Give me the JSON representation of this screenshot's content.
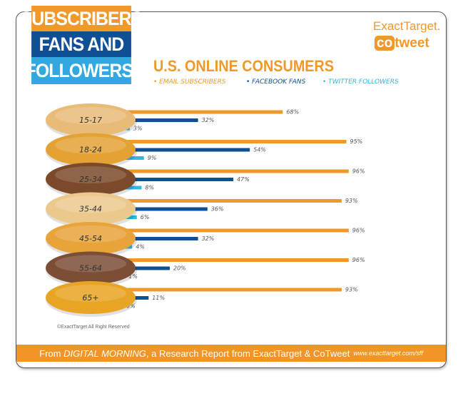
{
  "header": {
    "line1": "SUBSCRIBERS",
    "line2": "FANS AND",
    "line3": "FOLLOWERS",
    "tm": "™",
    "logo1": "ExactTarget.",
    "logo2_co": "co",
    "logo2_rest": "tweet"
  },
  "chart_data": {
    "type": "bar",
    "title": "U.S. ONLINE CONSUMERS",
    "categories": [
      "15-17",
      "18-24",
      "25-34",
      "35-44",
      "45-54",
      "55-64",
      "65+"
    ],
    "series": [
      {
        "name": "EMAIL SUBSCRIBERS",
        "color": "#f0982a",
        "values": [
          68,
          95,
          96,
          93,
          96,
          96,
          93
        ]
      },
      {
        "name": "FACEBOOK FANS",
        "color": "#0f4f96",
        "values": [
          32,
          54,
          47,
          36,
          32,
          20,
          11
        ]
      },
      {
        "name": "TWITTER FOLLOWERS",
        "color": "#33b5e5",
        "values": [
          3,
          9,
          8,
          6,
          4,
          1,
          0
        ]
      }
    ],
    "value_suffix": "%",
    "bagel_colors": [
      "#e9bb78",
      "#e4a235",
      "#7b4a2b",
      "#ebc98d",
      "#e9a33b",
      "#7c4e36",
      "#e8a424"
    ]
  },
  "copyright": "©ExactTarget All Right Reserved",
  "footer": {
    "pre": "From ",
    "italic": "DIGITAL MORNING",
    "post": ", a Research Report from ExactTarget & CoTweet",
    "url": "www.exacttarget.com/sff"
  }
}
